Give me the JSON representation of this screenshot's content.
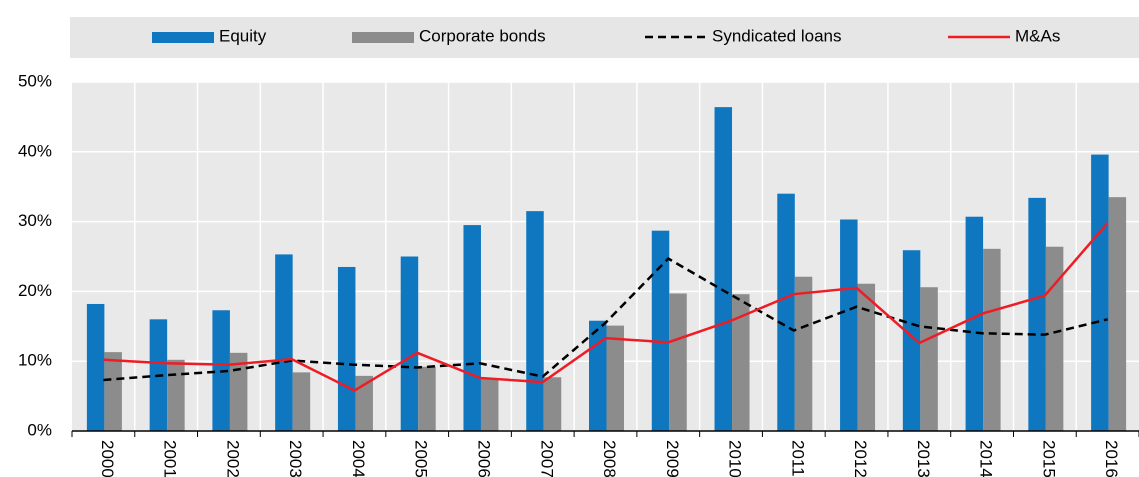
{
  "chart_data": {
    "type": "bar_line",
    "categories": [
      "2000",
      "2001",
      "2002",
      "2003",
      "2004",
      "2005",
      "2006",
      "2007",
      "2008",
      "2009",
      "2010",
      "2011",
      "2012",
      "2013",
      "2014",
      "2015",
      "2016"
    ],
    "series": [
      {
        "name": "Equity",
        "type": "bar",
        "color": "#0f77c0",
        "values": [
          18.2,
          16,
          17.3,
          25.3,
          23.5,
          25,
          29.5,
          31.5,
          15.8,
          28.7,
          46.4,
          34,
          30.3,
          25.9,
          30.7,
          33.4,
          39.6
        ]
      },
      {
        "name": "Corporate bonds",
        "type": "bar",
        "color": "#8c8c8c",
        "values": [
          11.3,
          10.2,
          11.2,
          8.4,
          7.9,
          9.2,
          7.5,
          7.7,
          15.1,
          19.7,
          19.6,
          22.1,
          21.1,
          20.6,
          26.1,
          26.4,
          33.5
        ]
      },
      {
        "name": "Syndicated loans",
        "type": "line",
        "dash": true,
        "color": "#000000",
        "values": [
          7.3,
          8,
          8.6,
          10.1,
          9.5,
          9.1,
          9.7,
          7.8,
          15.5,
          24.7,
          19.5,
          14.4,
          17.8,
          15,
          14,
          13.8,
          16
        ]
      },
      {
        "name": "M&As",
        "type": "line",
        "color": "#ee1c25",
        "values": [
          10.2,
          9.7,
          9.5,
          10.3,
          5.8,
          11.2,
          7.6,
          7,
          13.3,
          12.7,
          15.8,
          19.6,
          20.5,
          12.6,
          16.8,
          19.4,
          29.8
        ]
      }
    ],
    "ylim": [
      0,
      50
    ],
    "yticks": [
      {
        "value": 0,
        "label": "0%"
      },
      {
        "value": 10,
        "label": "10%"
      },
      {
        "value": 20,
        "label": "20%"
      },
      {
        "value": 30,
        "label": "30%"
      },
      {
        "value": 40,
        "label": "40%"
      },
      {
        "value": 50,
        "label": "50%"
      }
    ],
    "grid": true
  }
}
